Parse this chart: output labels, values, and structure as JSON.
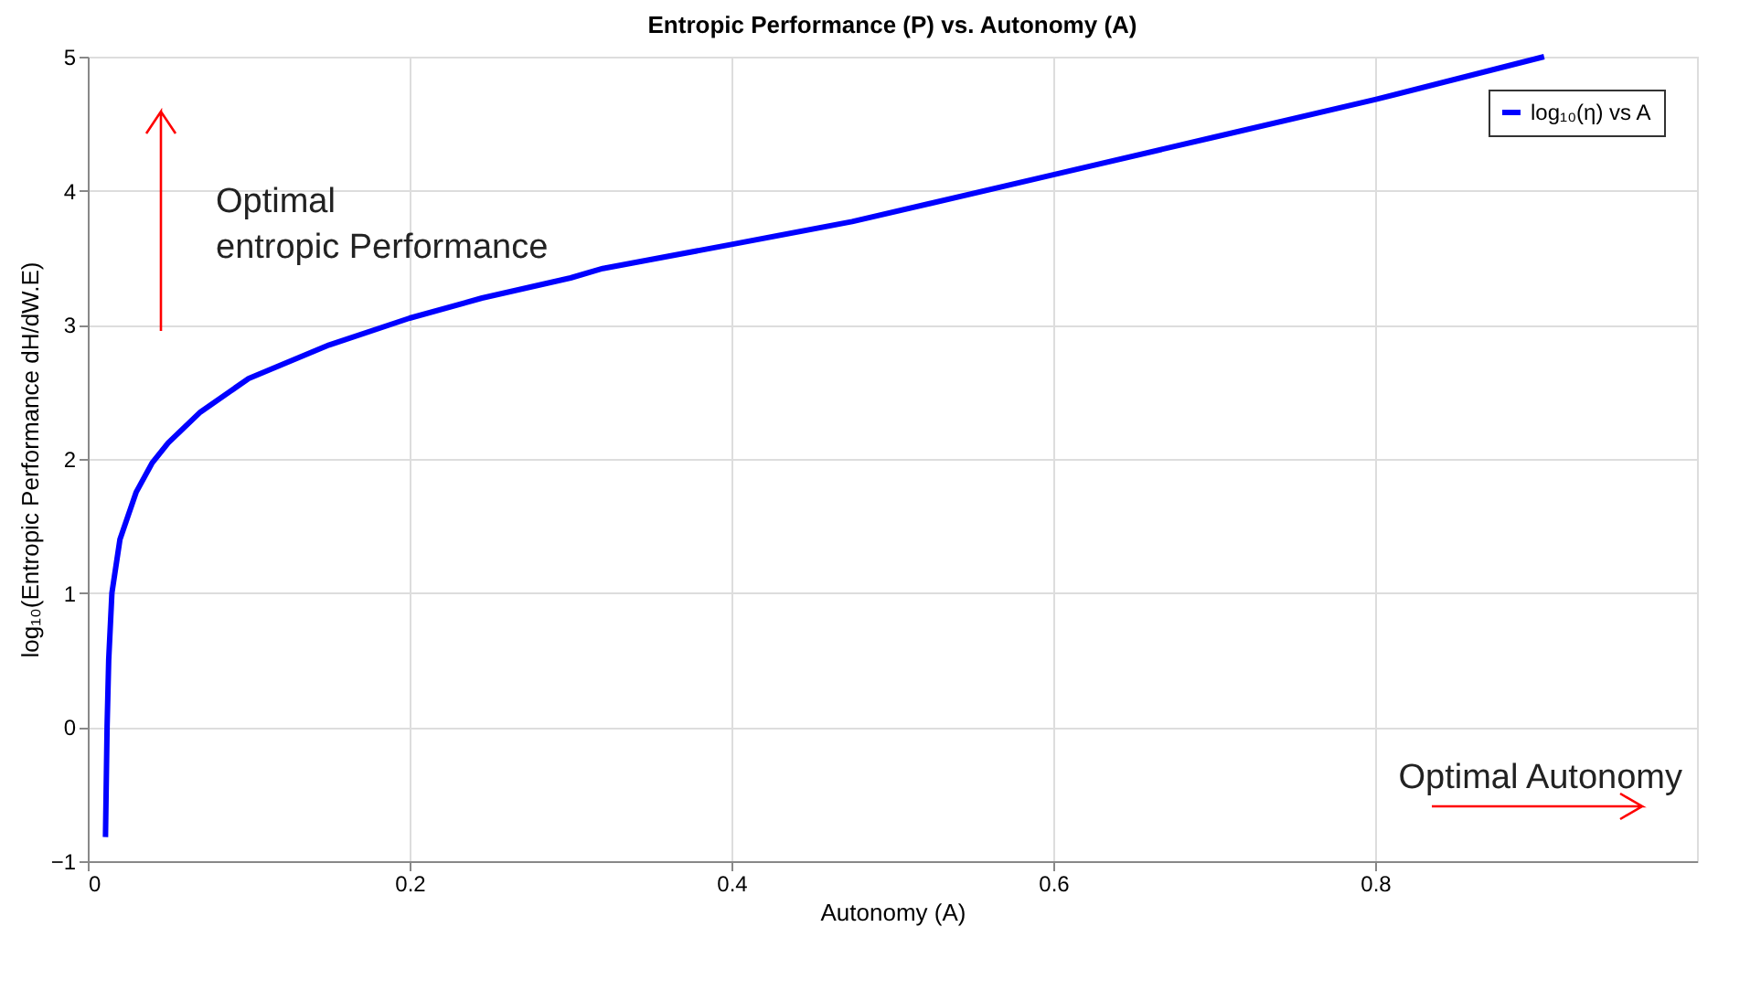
{
  "chart_data": {
    "type": "line",
    "title": "Entropic Performance (P) vs. Autonomy (A)",
    "xlabel": "Autonomy (A)",
    "ylabel": "log₁₀(Entropic Performance dH/dW.E)",
    "x": [
      0.011,
      0.012,
      0.013,
      0.015,
      0.02,
      0.03,
      0.04,
      0.05,
      0.07,
      0.1,
      0.15,
      0.2,
      0.245,
      0.3,
      0.32,
      0.4,
      0.475,
      0.6,
      0.7,
      0.8,
      0.905
    ],
    "series": [
      {
        "name": "log₁₀(η) vs A",
        "color": "#0000ff",
        "values": [
          -0.82,
          0.0,
          0.5,
          1.0,
          1.4,
          1.75,
          1.97,
          2.12,
          2.35,
          2.6,
          2.85,
          3.05,
          3.2,
          3.35,
          3.42,
          3.6,
          3.77,
          4.12,
          4.4,
          4.68,
          5.0
        ]
      }
    ],
    "xlim": [
      0,
      1
    ],
    "ylim": [
      -1,
      5
    ],
    "xticks": [
      0,
      0.2,
      0.4,
      0.6,
      0.8
    ],
    "yticks": [
      -1,
      0,
      1,
      2,
      3,
      4,
      5
    ],
    "annotations": [
      "Optimal\nentropic Performance",
      "Optimal Autonomy"
    ],
    "grid": true,
    "legend": "top right",
    "marker": "none",
    "line_style": "solid"
  }
}
